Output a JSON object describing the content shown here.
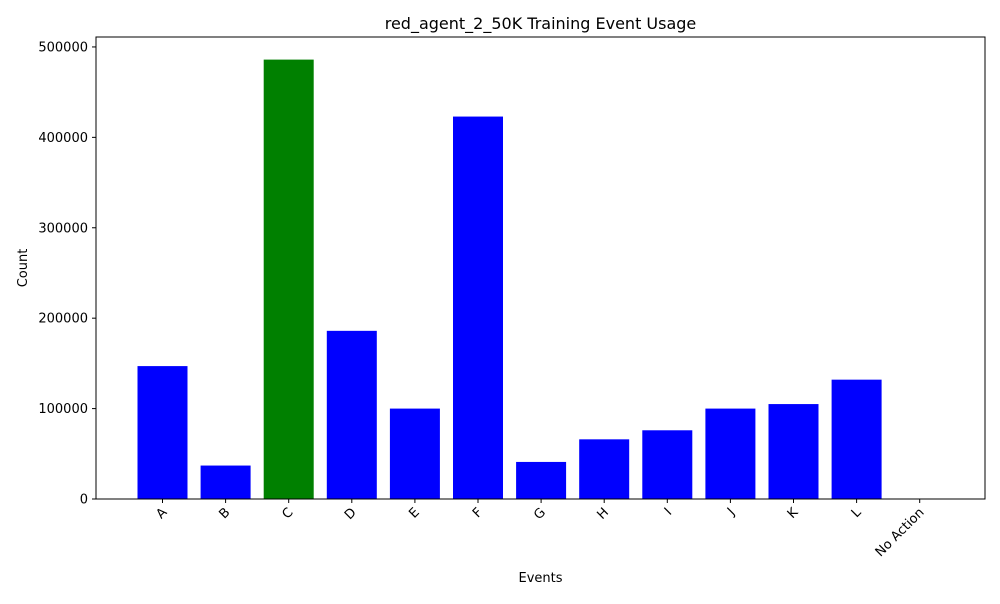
{
  "chart_data": {
    "type": "bar",
    "title": "red_agent_2_50K Training Event Usage",
    "xlabel": "Events",
    "ylabel": "Count",
    "categories": [
      "A",
      "B",
      "C",
      "D",
      "E",
      "F",
      "G",
      "H",
      "I",
      "J",
      "K",
      "L",
      "No Action"
    ],
    "values": [
      147000,
      37000,
      486000,
      186000,
      100000,
      423000,
      41000,
      66000,
      76000,
      100000,
      105000,
      132000,
      0
    ],
    "bar_colors": [
      "#0000ff",
      "#0000ff",
      "#008000",
      "#0000ff",
      "#0000ff",
      "#0000ff",
      "#0000ff",
      "#0000ff",
      "#0000ff",
      "#0000ff",
      "#0000ff",
      "#0000ff",
      "#0000ff"
    ],
    "yticks": [
      0,
      100000,
      200000,
      300000,
      400000,
      500000
    ],
    "ylim": [
      0,
      511000
    ],
    "x_tick_rotation": 45,
    "grid": false,
    "legend": "none"
  }
}
